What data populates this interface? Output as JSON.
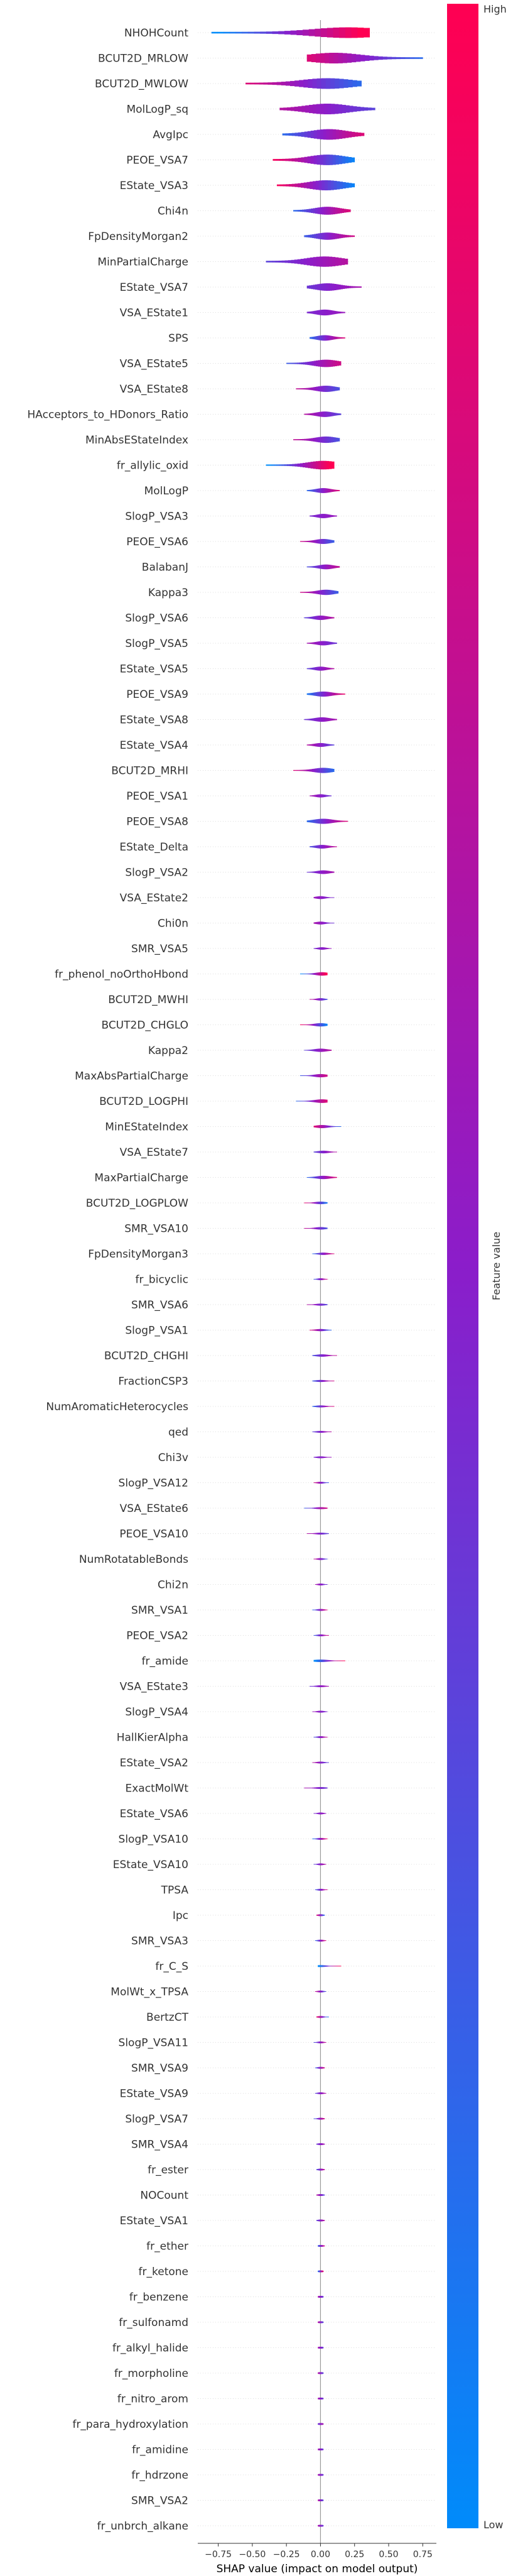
{
  "chart_data": {
    "type": "violin",
    "xlabel": "SHAP value (impact on model output)",
    "xlim": [
      -0.9,
      0.85
    ],
    "x_ticks": [
      "−0.75",
      "−0.50",
      "−0.25",
      "0.00",
      "0.25",
      "0.50",
      "0.75"
    ],
    "x_tick_values": [
      -0.75,
      -0.5,
      -0.25,
      0.0,
      0.25,
      0.5,
      0.75
    ],
    "colorbar": {
      "label": "Feature value",
      "high": "High",
      "low": "Low",
      "high_color": "#ff0052",
      "low_color": "#008bfa"
    },
    "features": [
      {
        "name": "NHOHCount",
        "min": -0.8,
        "max": 0.36,
        "peak": 0.2,
        "shift": 0.95
      },
      {
        "name": "BCUT2D_MRLOW",
        "min": -0.1,
        "max": 0.75,
        "peak": 0.1,
        "shift": -0.6
      },
      {
        "name": "BCUT2D_MWLOW",
        "min": -0.55,
        "max": 0.3,
        "peak": 0.05,
        "shift": -0.6
      },
      {
        "name": "MolLogP_sq",
        "min": -0.3,
        "max": 0.4,
        "peak": 0.05,
        "shift": -0.3
      },
      {
        "name": "AvgIpc",
        "min": -0.28,
        "max": 0.32,
        "peak": 0.06,
        "shift": 0.6
      },
      {
        "name": "PEOE_VSA7",
        "min": -0.35,
        "max": 0.25,
        "peak": 0.05,
        "shift": -0.8
      },
      {
        "name": "EState_VSA3",
        "min": -0.32,
        "max": 0.25,
        "peak": 0.04,
        "shift": -0.8
      },
      {
        "name": "Chi4n",
        "min": -0.2,
        "max": 0.22,
        "peak": 0.05,
        "shift": 0.6
      },
      {
        "name": "FpDensityMorgan2",
        "min": -0.12,
        "max": 0.25,
        "peak": 0.05,
        "shift": 0.5
      },
      {
        "name": "MinPartialCharge",
        "min": -0.4,
        "max": 0.2,
        "peak": 0.03,
        "shift": 0.3
      },
      {
        "name": "EState_VSA7",
        "min": -0.1,
        "max": 0.3,
        "peak": 0.05,
        "shift": 0.2
      },
      {
        "name": "VSA_EState1",
        "min": -0.1,
        "max": 0.18,
        "peak": 0.03,
        "shift": 0.1
      },
      {
        "name": "SPS",
        "min": -0.08,
        "max": 0.18,
        "peak": 0.03,
        "shift": 0.6
      },
      {
        "name": "VSA_EState5",
        "min": -0.25,
        "max": 0.15,
        "peak": 0.04,
        "shift": 0.5
      },
      {
        "name": "VSA_EState8",
        "min": -0.18,
        "max": 0.14,
        "peak": 0.04,
        "shift": -0.4
      },
      {
        "name": "HAcceptors_to_HDonors_Ratio",
        "min": -0.12,
        "max": 0.15,
        "peak": 0.03,
        "shift": -0.3
      },
      {
        "name": "MinAbsEStateIndex",
        "min": -0.2,
        "max": 0.14,
        "peak": 0.04,
        "shift": -0.4
      },
      {
        "name": "fr_allylic_oxid",
        "min": -0.4,
        "max": 0.1,
        "peak": 0.02,
        "shift": 0.95
      },
      {
        "name": "MolLogP",
        "min": -0.1,
        "max": 0.14,
        "peak": 0.02,
        "shift": 0.6
      },
      {
        "name": "SlogP_VSA3",
        "min": -0.08,
        "max": 0.12,
        "peak": 0.02,
        "shift": 0.1
      },
      {
        "name": "PEOE_VSA6",
        "min": -0.15,
        "max": 0.1,
        "peak": 0.02,
        "shift": -0.5
      },
      {
        "name": "BalabanJ",
        "min": -0.1,
        "max": 0.14,
        "peak": 0.04,
        "shift": 0.4
      },
      {
        "name": "Kappa3",
        "min": -0.15,
        "max": 0.13,
        "peak": 0.04,
        "shift": -0.5
      },
      {
        "name": "SlogP_VSA6",
        "min": -0.12,
        "max": 0.1,
        "peak": 0.0,
        "shift": 0.3
      },
      {
        "name": "SlogP_VSA5",
        "min": -0.1,
        "max": 0.12,
        "peak": 0.02,
        "shift": -0.2
      },
      {
        "name": "EState_VSA5",
        "min": -0.1,
        "max": 0.1,
        "peak": 0.0,
        "shift": 0.3
      },
      {
        "name": "PEOE_VSA9",
        "min": -0.1,
        "max": 0.18,
        "peak": 0.02,
        "shift": 0.7
      },
      {
        "name": "EState_VSA8",
        "min": -0.12,
        "max": 0.12,
        "peak": 0.01,
        "shift": 0.2
      },
      {
        "name": "EState_VSA4",
        "min": -0.1,
        "max": 0.1,
        "peak": 0.0,
        "shift": -0.3
      },
      {
        "name": "BCUT2D_MRHI",
        "min": -0.2,
        "max": 0.1,
        "peak": 0.02,
        "shift": -0.6
      },
      {
        "name": "PEOE_VSA1",
        "min": -0.08,
        "max": 0.08,
        "peak": 0.0,
        "shift": -0.2
      },
      {
        "name": "PEOE_VSA8",
        "min": -0.1,
        "max": 0.2,
        "peak": 0.02,
        "shift": 0.6
      },
      {
        "name": "EState_Delta",
        "min": -0.08,
        "max": 0.12,
        "peak": 0.01,
        "shift": 0.4
      },
      {
        "name": "SlogP_VSA2",
        "min": -0.1,
        "max": 0.1,
        "peak": 0.02,
        "shift": 0.2
      },
      {
        "name": "VSA_EState2",
        "min": -0.05,
        "max": 0.1,
        "peak": 0.0,
        "shift": -0.1
      },
      {
        "name": "Chi0n",
        "min": -0.05,
        "max": 0.1,
        "peak": 0.0,
        "shift": -0.2
      },
      {
        "name": "SMR_VSA5",
        "min": -0.05,
        "max": 0.08,
        "peak": 0.01,
        "shift": 0.1
      },
      {
        "name": "fr_phenol_noOrthoHbond",
        "min": -0.15,
        "max": 0.05,
        "peak": 0.01,
        "shift": 0.9
      },
      {
        "name": "BCUT2D_MWHI",
        "min": -0.08,
        "max": 0.05,
        "peak": 0.0,
        "shift": -0.4
      },
      {
        "name": "BCUT2D_CHGLO",
        "min": -0.15,
        "max": 0.05,
        "peak": 0.0,
        "shift": -0.8
      },
      {
        "name": "Kappa2",
        "min": -0.12,
        "max": 0.08,
        "peak": 0.0,
        "shift": 0.3
      },
      {
        "name": "MaxAbsPartialCharge",
        "min": -0.15,
        "max": 0.05,
        "peak": 0.0,
        "shift": 0.5
      },
      {
        "name": "BCUT2D_LOGPHI",
        "min": -0.18,
        "max": 0.05,
        "peak": 0.01,
        "shift": 0.6
      },
      {
        "name": "MinEStateIndex",
        "min": -0.05,
        "max": 0.15,
        "peak": 0.01,
        "shift": -0.6
      },
      {
        "name": "VSA_EState7",
        "min": -0.05,
        "max": 0.12,
        "peak": 0.02,
        "shift": 0.3
      },
      {
        "name": "MaxPartialCharge",
        "min": -0.1,
        "max": 0.12,
        "peak": 0.02,
        "shift": 0.6
      },
      {
        "name": "BCUT2D_LOGPLOW",
        "min": -0.12,
        "max": 0.05,
        "peak": 0.0,
        "shift": -0.7
      },
      {
        "name": "SMR_VSA10",
        "min": -0.12,
        "max": 0.05,
        "peak": 0.0,
        "shift": -0.4
      },
      {
        "name": "FpDensityMorgan3",
        "min": -0.06,
        "max": 0.1,
        "peak": 0.02,
        "shift": 0.6
      },
      {
        "name": "fr_bicyclic",
        "min": -0.05,
        "max": 0.05,
        "peak": 0.0,
        "shift": 0.5
      },
      {
        "name": "SMR_VSA6",
        "min": -0.1,
        "max": 0.05,
        "peak": 0.0,
        "shift": -0.3
      },
      {
        "name": "SlogP_VSA1",
        "min": -0.08,
        "max": 0.08,
        "peak": 0.0,
        "shift": -0.6
      },
      {
        "name": "BCUT2D_CHGHI",
        "min": -0.06,
        "max": 0.12,
        "peak": 0.01,
        "shift": 0.4
      },
      {
        "name": "FractionCSP3",
        "min": -0.06,
        "max": 0.1,
        "peak": 0.0,
        "shift": 0.5
      },
      {
        "name": "NumAromaticHeterocycles",
        "min": -0.06,
        "max": 0.1,
        "peak": 0.0,
        "shift": 0.6
      },
      {
        "name": "qed",
        "min": -0.06,
        "max": 0.08,
        "peak": 0.0,
        "shift": 0.3
      },
      {
        "name": "Chi3v",
        "min": -0.05,
        "max": 0.08,
        "peak": 0.0,
        "shift": 0.1
      },
      {
        "name": "SlogP_VSA12",
        "min": -0.05,
        "max": 0.06,
        "peak": 0.0,
        "shift": -0.5
      },
      {
        "name": "VSA_EState6",
        "min": -0.12,
        "max": 0.05,
        "peak": 0.0,
        "shift": 0.5
      },
      {
        "name": "PEOE_VSA10",
        "min": -0.1,
        "max": 0.06,
        "peak": 0.0,
        "shift": -0.3
      },
      {
        "name": "NumRotatableBonds",
        "min": -0.05,
        "max": 0.05,
        "peak": 0.0,
        "shift": -0.4
      },
      {
        "name": "Chi2n",
        "min": -0.04,
        "max": 0.05,
        "peak": 0.0,
        "shift": -0.2
      },
      {
        "name": "SMR_VSA1",
        "min": -0.06,
        "max": 0.05,
        "peak": 0.0,
        "shift": 0.6
      },
      {
        "name": "PEOE_VSA2",
        "min": -0.05,
        "max": 0.06,
        "peak": 0.0,
        "shift": 0.5
      },
      {
        "name": "fr_amide",
        "min": -0.05,
        "max": 0.18,
        "peak": 0.0,
        "shift": 0.9
      },
      {
        "name": "VSA_EState3",
        "min": -0.08,
        "max": 0.06,
        "peak": 0.0,
        "shift": 0.2
      },
      {
        "name": "SlogP_VSA4",
        "min": -0.06,
        "max": 0.05,
        "peak": 0.0,
        "shift": -0.1
      },
      {
        "name": "HallKierAlpha",
        "min": -0.05,
        "max": 0.05,
        "peak": 0.0,
        "shift": 0.4
      },
      {
        "name": "EState_VSA2",
        "min": -0.06,
        "max": 0.06,
        "peak": 0.0,
        "shift": -0.3
      },
      {
        "name": "ExactMolWt",
        "min": -0.12,
        "max": 0.05,
        "peak": 0.0,
        "shift": -0.2
      },
      {
        "name": "EState_VSA6",
        "min": -0.05,
        "max": 0.04,
        "peak": 0.0,
        "shift": 0.1
      },
      {
        "name": "SlogP_VSA10",
        "min": -0.06,
        "max": 0.05,
        "peak": 0.0,
        "shift": 0.7
      },
      {
        "name": "EState_VSA10",
        "min": -0.05,
        "max": 0.04,
        "peak": 0.0,
        "shift": 0.3
      },
      {
        "name": "TPSA",
        "min": -0.04,
        "max": 0.05,
        "peak": 0.0,
        "shift": 0.5
      },
      {
        "name": "Ipc",
        "min": -0.03,
        "max": 0.03,
        "peak": 0.0,
        "shift": -0.6
      },
      {
        "name": "SMR_VSA3",
        "min": -0.04,
        "max": 0.04,
        "peak": 0.0,
        "shift": 0.6
      },
      {
        "name": "fr_C_S",
        "min": -0.02,
        "max": 0.15,
        "peak": 0.0,
        "shift": 0.9
      },
      {
        "name": "MolWt_x_TPSA",
        "min": -0.04,
        "max": 0.04,
        "peak": 0.0,
        "shift": -0.4
      },
      {
        "name": "BertzCT",
        "min": -0.03,
        "max": 0.06,
        "peak": 0.0,
        "shift": -0.7
      },
      {
        "name": "SlogP_VSA11",
        "min": -0.05,
        "max": 0.04,
        "peak": 0.0,
        "shift": 0.4
      },
      {
        "name": "SMR_VSA9",
        "min": -0.04,
        "max": 0.03,
        "peak": 0.0,
        "shift": 0.5
      },
      {
        "name": "EState_VSA9",
        "min": -0.04,
        "max": 0.04,
        "peak": 0.0,
        "shift": 0.3
      },
      {
        "name": "SlogP_VSA7",
        "min": -0.05,
        "max": 0.03,
        "peak": 0.0,
        "shift": 0.5
      },
      {
        "name": "SMR_VSA4",
        "min": -0.03,
        "max": 0.03,
        "peak": 0.0,
        "shift": 0.2
      },
      {
        "name": "fr_ester",
        "min": -0.03,
        "max": 0.03,
        "peak": 0.0,
        "shift": 0.4
      },
      {
        "name": "NOCount",
        "min": -0.03,
        "max": 0.03,
        "peak": 0.0,
        "shift": -0.3
      },
      {
        "name": "EState_VSA1",
        "min": -0.03,
        "max": 0.03,
        "peak": 0.0,
        "shift": 0.3
      },
      {
        "name": "fr_ether",
        "min": -0.02,
        "max": 0.03,
        "peak": 0.0,
        "shift": 0.5
      },
      {
        "name": "fr_ketone",
        "min": -0.02,
        "max": 0.02,
        "peak": 0.0,
        "shift": 0.7
      },
      {
        "name": "fr_benzene",
        "min": -0.02,
        "max": 0.02,
        "peak": 0.0,
        "shift": -0.2
      },
      {
        "name": "fr_sulfonamd",
        "min": -0.02,
        "max": 0.02,
        "peak": 0.0,
        "shift": -0.3
      },
      {
        "name": "fr_alkyl_halide",
        "min": -0.02,
        "max": 0.02,
        "peak": 0.0,
        "shift": -0.2
      },
      {
        "name": "fr_morpholine",
        "min": -0.02,
        "max": 0.02,
        "peak": 0.0,
        "shift": -0.3
      },
      {
        "name": "fr_nitro_arom",
        "min": -0.02,
        "max": 0.02,
        "peak": 0.0,
        "shift": -0.2
      },
      {
        "name": "fr_para_hydroxylation",
        "min": -0.02,
        "max": 0.02,
        "peak": 0.0,
        "shift": 0.2
      },
      {
        "name": "fr_amidine",
        "min": -0.02,
        "max": 0.02,
        "peak": 0.0,
        "shift": -0.2
      },
      {
        "name": "fr_hdrzone",
        "min": -0.02,
        "max": 0.02,
        "peak": 0.0,
        "shift": -0.2
      },
      {
        "name": "SMR_VSA2",
        "min": -0.02,
        "max": 0.02,
        "peak": 0.0,
        "shift": -0.3
      },
      {
        "name": "fr_unbrch_alkane",
        "min": -0.02,
        "max": 0.02,
        "peak": 0.0,
        "shift": -0.2
      }
    ]
  }
}
